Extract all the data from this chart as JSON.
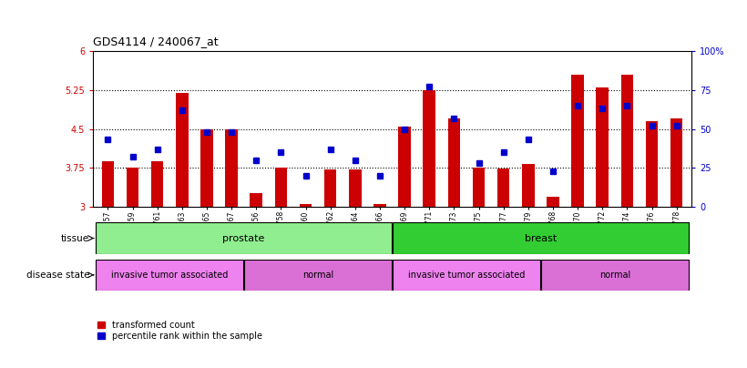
{
  "title": "GDS4114 / 240067_at",
  "samples": [
    "GSM662757",
    "GSM662759",
    "GSM662761",
    "GSM662763",
    "GSM662765",
    "GSM662767",
    "GSM662756",
    "GSM662758",
    "GSM662760",
    "GSM662762",
    "GSM662764",
    "GSM662766",
    "GSM662769",
    "GSM662771",
    "GSM662773",
    "GSM662775",
    "GSM662777",
    "GSM662779",
    "GSM662768",
    "GSM662770",
    "GSM662772",
    "GSM662774",
    "GSM662776",
    "GSM662778"
  ],
  "bar_values": [
    3.88,
    3.75,
    3.88,
    5.2,
    4.5,
    4.5,
    3.27,
    3.75,
    3.05,
    3.72,
    3.72,
    3.05,
    4.55,
    5.25,
    4.7,
    3.75,
    3.73,
    3.83,
    3.2,
    5.55,
    5.3,
    5.55,
    4.65,
    4.7
  ],
  "percentile_values": [
    43,
    32,
    37,
    62,
    48,
    48,
    30,
    35,
    20,
    37,
    30,
    20,
    50,
    77,
    57,
    28,
    35,
    43,
    23,
    65,
    63,
    65,
    52,
    52
  ],
  "ylim_left": [
    3.0,
    6.0
  ],
  "ylim_right": [
    0,
    100
  ],
  "yticks_left": [
    3.0,
    3.75,
    4.5,
    5.25,
    6.0
  ],
  "yticks_left_labels": [
    "3",
    "3.75",
    "4.5",
    "5.25",
    "6"
  ],
  "yticks_right": [
    0,
    25,
    50,
    75,
    100
  ],
  "yticks_right_labels": [
    "0",
    "25",
    "50",
    "75",
    "100%"
  ],
  "hlines": [
    3.75,
    4.5,
    5.25
  ],
  "bar_color": "#CC0000",
  "dot_color": "#0000CC",
  "tissue_groups": [
    {
      "label": "prostate",
      "start": 0,
      "end": 11,
      "color": "#90EE90"
    },
    {
      "label": "breast",
      "start": 12,
      "end": 23,
      "color": "#32CD32"
    }
  ],
  "disease_groups": [
    {
      "label": "invasive tumor associated",
      "start": 0,
      "end": 5,
      "color": "#EE82EE"
    },
    {
      "label": "normal",
      "start": 6,
      "end": 11,
      "color": "#DA70D6"
    },
    {
      "label": "invasive tumor associated",
      "start": 12,
      "end": 17,
      "color": "#EE82EE"
    },
    {
      "label": "normal",
      "start": 18,
      "end": 23,
      "color": "#DA70D6"
    }
  ],
  "legend_items": [
    {
      "label": "transformed count",
      "color": "#CC0000"
    },
    {
      "label": "percentile rank within the sample",
      "color": "#0000CC"
    }
  ],
  "background_color": "#ffffff",
  "tissue_label": "tissue",
  "disease_label": "disease state"
}
